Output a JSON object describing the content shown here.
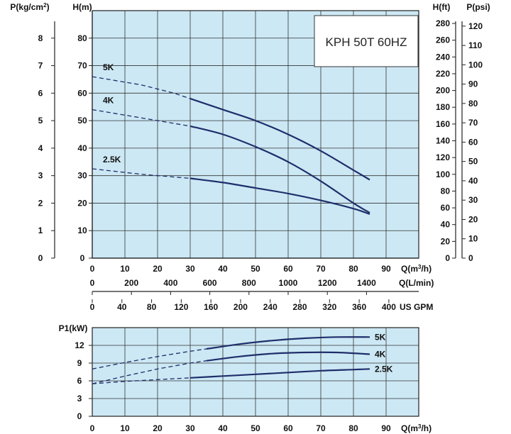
{
  "chart_data": [
    {
      "type": "line",
      "title": "KPH 50T 60HZ",
      "xlabel": "Q(m3/h)",
      "ylabel": "H(m)",
      "xlim": [
        0,
        100
      ],
      "ylim": [
        0,
        90
      ],
      "x_ticks": [
        0,
        10,
        20,
        30,
        40,
        50,
        60,
        70,
        80,
        90
      ],
      "y_ticks": [
        0,
        10,
        20,
        30,
        40,
        50,
        60,
        70,
        80
      ],
      "grid": true,
      "background": "#cce8f4",
      "curve_color": "#1f2e6b",
      "secondary_axes": {
        "left_pressure": {
          "label": "P(kg/cm2)",
          "ticks": [
            0,
            1,
            2,
            3,
            4,
            5,
            6,
            7,
            8
          ],
          "per_unit_h": 10
        },
        "right_feet": {
          "label": "H(ft)",
          "ticks": [
            0,
            20,
            40,
            60,
            80,
            100,
            120,
            140,
            160,
            180,
            200,
            220,
            240,
            260,
            280
          ],
          "h_per_unit": 0.3048
        },
        "right_psi": {
          "label": "P(psi)",
          "ticks": [
            0,
            10,
            20,
            30,
            40,
            50,
            60,
            70,
            80,
            90,
            100,
            110,
            120
          ],
          "h_per_unit": 0.7031
        },
        "bottom_lpm": {
          "label": "Q(L/min)",
          "ticks": [
            0,
            200,
            400,
            600,
            800,
            1000,
            1200,
            1400
          ],
          "q_per_unit": 0.06
        },
        "bottom_gpm": {
          "label": "US GPM",
          "ticks": [
            0,
            40,
            80,
            120,
            160,
            200,
            240,
            280,
            320,
            360,
            400
          ],
          "q_per_unit": 0.22712
        }
      },
      "series": [
        {
          "name": "5K",
          "dashed": {
            "x": [
              0,
              15,
              25,
              30
            ],
            "y": [
              66,
              63,
              60,
              58
            ]
          },
          "solid": {
            "x": [
              30,
              40,
              50,
              60,
              70,
              80,
              85
            ],
            "y": [
              58,
              54,
              50,
              45,
              39,
              32,
              28.5
            ]
          }
        },
        {
          "name": "4K",
          "dashed": {
            "x": [
              0,
              15,
              25,
              30
            ],
            "y": [
              54,
              51,
              49,
              48
            ]
          },
          "solid": {
            "x": [
              30,
              40,
              50,
              60,
              70,
              80,
              85
            ],
            "y": [
              48,
              45,
              40.5,
              35,
              28,
              20,
              16.5
            ]
          }
        },
        {
          "name": "2.5K",
          "dashed": {
            "x": [
              0,
              15,
              25,
              30
            ],
            "y": [
              32.5,
              30.5,
              29.5,
              29
            ]
          },
          "solid": {
            "x": [
              30,
              40,
              50,
              60,
              70,
              80,
              85
            ],
            "y": [
              29,
              27.5,
              25.5,
              23.5,
              21,
              18,
              16
            ]
          }
        }
      ]
    },
    {
      "type": "line",
      "xlabel": "Q(m3/h)",
      "ylabel": "P1(kW)",
      "xlim": [
        0,
        100
      ],
      "ylim": [
        0,
        15
      ],
      "x_ticks": [
        0,
        10,
        20,
        30,
        40,
        50,
        60,
        70,
        80,
        90
      ],
      "y_ticks": [
        0,
        3,
        6,
        9,
        12
      ],
      "grid": true,
      "background": "#cce8f4",
      "curve_color": "#1f2e6b",
      "series": [
        {
          "name": "5K",
          "dashed": {
            "x": [
              0,
              10,
              20,
              30,
              35
            ],
            "y": [
              8,
              9.1,
              10.1,
              11,
              11.4
            ]
          },
          "solid": {
            "x": [
              35,
              45,
              55,
              65,
              75,
              85
            ],
            "y": [
              11.4,
              12.2,
              12.8,
              13.2,
              13.4,
              13.4
            ]
          }
        },
        {
          "name": "4K",
          "dashed": {
            "x": [
              0,
              10,
              20,
              30,
              35
            ],
            "y": [
              5.5,
              6.8,
              8,
              9,
              9.4
            ]
          },
          "solid": {
            "x": [
              35,
              45,
              55,
              65,
              75,
              85
            ],
            "y": [
              9.4,
              10.1,
              10.6,
              10.8,
              10.8,
              10.5
            ]
          }
        },
        {
          "name": "2.5K",
          "dashed": {
            "x": [
              0,
              10,
              20,
              30
            ],
            "y": [
              5.5,
              5.9,
              6.2,
              6.5
            ]
          },
          "solid": {
            "x": [
              30,
              40,
              50,
              60,
              70,
              80,
              85
            ],
            "y": [
              6.5,
              6.8,
              7.1,
              7.4,
              7.7,
              7.9,
              8.0
            ]
          }
        }
      ]
    }
  ]
}
